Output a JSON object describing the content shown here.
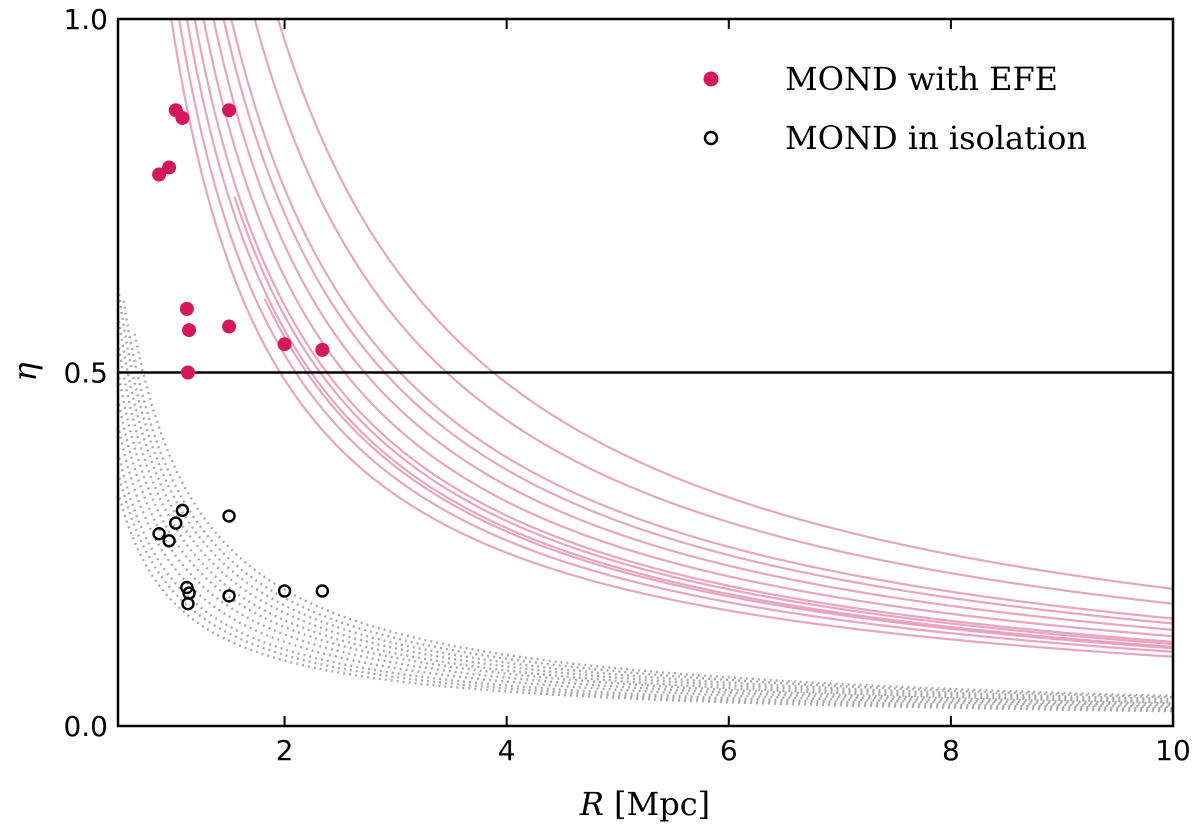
{
  "chart_data": {
    "type": "scatter",
    "xlabel_var": "R",
    "xlabel_unit": "[Mpc]",
    "ylabel": "η",
    "xlim": [
      0.5,
      10
    ],
    "ylim": [
      0,
      1
    ],
    "xticks": [
      2,
      4,
      6,
      8,
      10
    ],
    "yticks": [
      0.0,
      0.5,
      1.0
    ],
    "xtick_labels": [
      "2",
      "4",
      "6",
      "8",
      "10"
    ],
    "ytick_labels": [
      "0.0",
      "0.5",
      "1.0"
    ],
    "hline_y": 0.5,
    "legend_position": "top-right",
    "series": [
      {
        "name": "MOND with EFE",
        "marker": "filled-circle",
        "color": "#d4185a",
        "x": [
          0.87,
          0.96,
          1.02,
          1.08,
          1.12,
          1.14,
          1.13,
          1.5,
          1.5,
          2.0,
          2.34
        ],
        "y": [
          0.78,
          0.79,
          0.871,
          0.86,
          0.59,
          0.56,
          0.5,
          0.871,
          0.565,
          0.54,
          0.532
        ]
      },
      {
        "name": "MOND in isolation",
        "marker": "open-circle",
        "color": "#000000",
        "x": [
          0.87,
          0.96,
          1.02,
          1.08,
          1.12,
          1.14,
          1.13,
          1.5,
          1.5,
          2.0,
          2.34
        ],
        "y": [
          0.272,
          0.262,
          0.287,
          0.305,
          0.196,
          0.188,
          0.173,
          0.297,
          0.184,
          0.191,
          0.191
        ]
      }
    ],
    "efe_curves": {
      "color": "#e8a0ba",
      "form": "y = a / R^p",
      "curves": [
        {
          "a": 1.94,
          "p": 1,
          "x_start": 0.65
        },
        {
          "a": 1.73,
          "p": 1,
          "x_start": 0.65
        },
        {
          "a": 1.52,
          "p": 1,
          "x_start": 0.5
        },
        {
          "a": 1.45,
          "p": 1,
          "x_start": 0.5
        },
        {
          "a": 1.36,
          "p": 1,
          "x_start": 0.5
        },
        {
          "a": 1.27,
          "p": 1,
          "x_start": 0.5
        },
        {
          "a": 1.19,
          "p": 1,
          "x_start": 0.5
        },
        {
          "a": 1.12,
          "p": 1,
          "x_start": 0.5
        },
        {
          "a": 1.05,
          "p": 1,
          "x_start": 0.5
        },
        {
          "a": 0.98,
          "p": 1,
          "x_start": 0.5
        },
        {
          "a": 1.16,
          "p": 1,
          "x_start": 1.55
        },
        {
          "a": 1.1,
          "p": 1,
          "x_start": 1.82
        }
      ]
    },
    "isolation_curves": {
      "color": "#aaaaaa",
      "form": "y = a / R^p",
      "curves": [
        {
          "a": 0.37,
          "p": 0.94,
          "x_start": 0.65
        },
        {
          "a": 0.345,
          "p": 0.93,
          "x_start": 0.55
        },
        {
          "a": 0.325,
          "p": 0.93,
          "x_start": 0.5
        },
        {
          "a": 0.305,
          "p": 0.93,
          "x_start": 0.5
        },
        {
          "a": 0.285,
          "p": 0.93,
          "x_start": 0.5
        },
        {
          "a": 0.265,
          "p": 0.92,
          "x_start": 0.5
        },
        {
          "a": 0.245,
          "p": 0.92,
          "x_start": 0.5
        },
        {
          "a": 0.225,
          "p": 0.92,
          "x_start": 0.5
        },
        {
          "a": 0.205,
          "p": 0.92,
          "x_start": 0.5
        },
        {
          "a": 0.19,
          "p": 0.92,
          "x_start": 0.5
        },
        {
          "a": 0.175,
          "p": 0.92,
          "x_start": 0.5
        }
      ]
    }
  }
}
